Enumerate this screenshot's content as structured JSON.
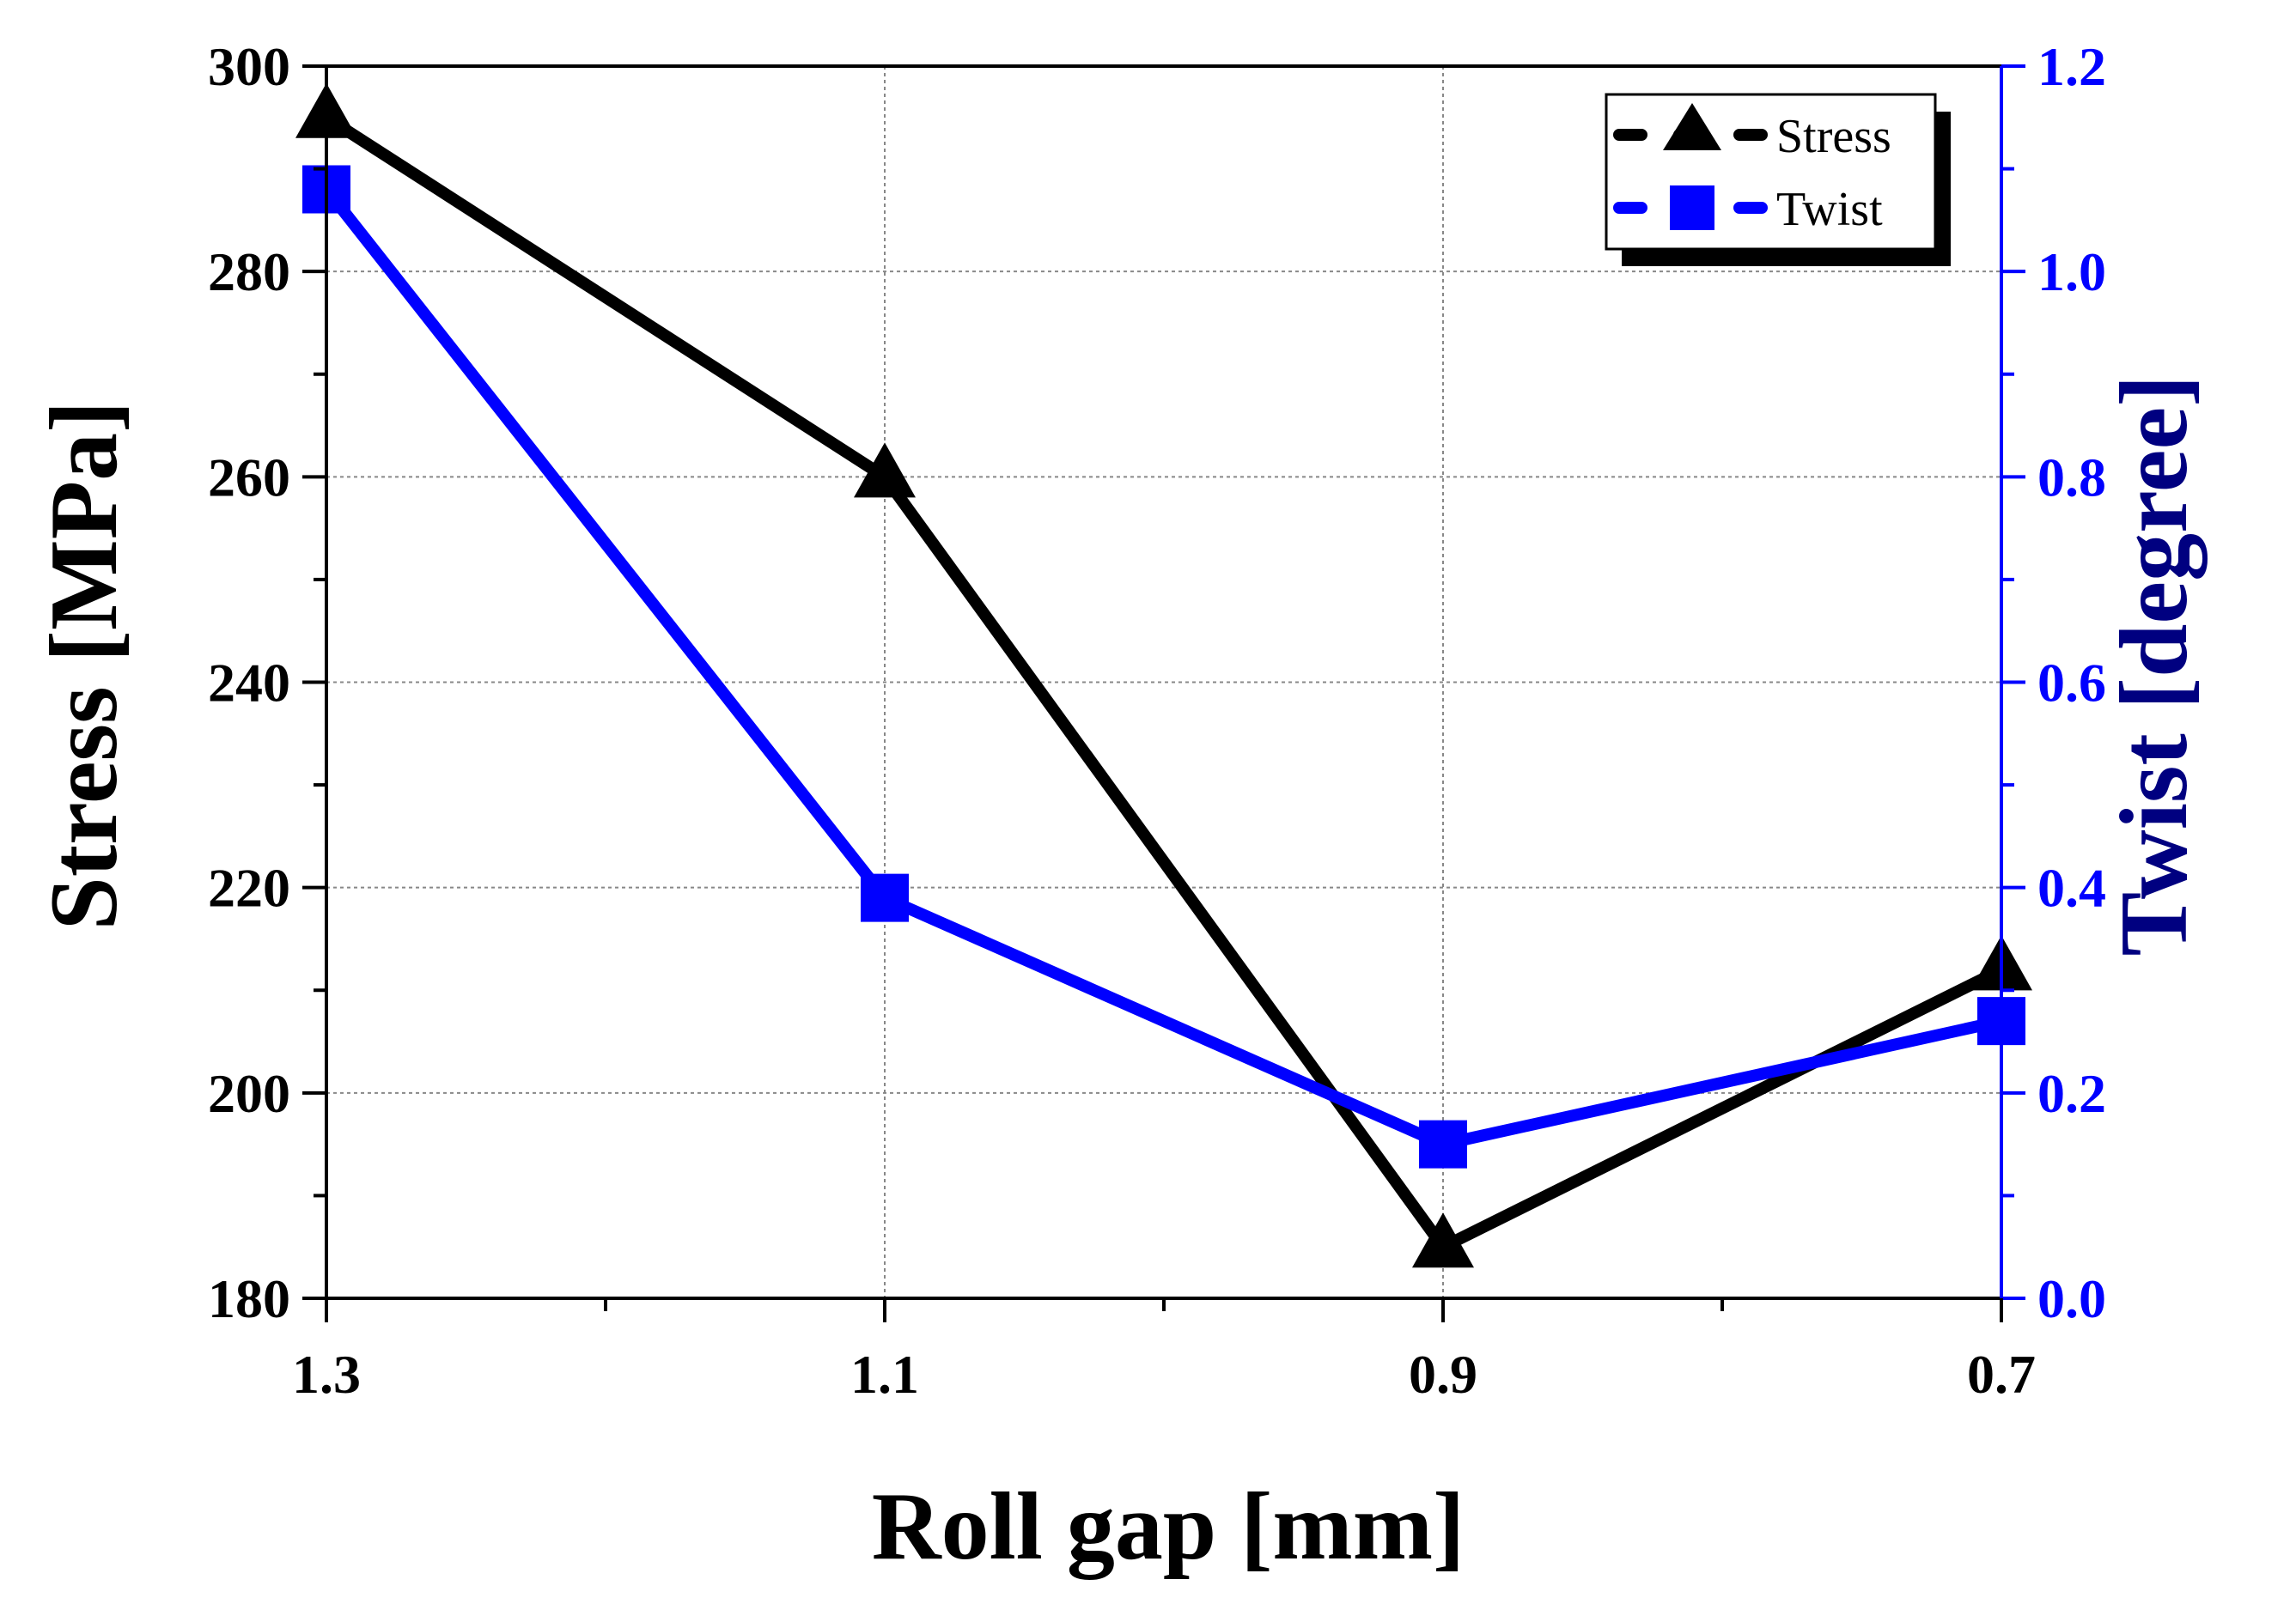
{
  "chart_data": {
    "type": "line",
    "title": "",
    "xlabel": "Roll gap [mm]",
    "ylabel": "Stress [MPa]",
    "y2label": "Twist [degree]",
    "x_ticks": [
      "1.3",
      "1.1",
      "0.9",
      "0.7"
    ],
    "x_values": [
      1.3,
      1.1,
      0.9,
      0.7
    ],
    "xlim": [
      1.3,
      0.7
    ],
    "ylim": [
      180,
      300
    ],
    "y_ticks": [
      "180",
      "200",
      "220",
      "240",
      "260",
      "280",
      "300"
    ],
    "y2lim": [
      0.0,
      1.2
    ],
    "y2_ticks": [
      "0.0",
      "0.2",
      "0.4",
      "0.6",
      "0.8",
      "1.0",
      "1.2"
    ],
    "grid": true,
    "legend_position": "top-right",
    "series": [
      {
        "name": "Stress",
        "axis": "left",
        "marker": "triangle",
        "color": "#000000",
        "values": [
          295,
          260,
          185,
          212
        ]
      },
      {
        "name": "Twist",
        "axis": "right",
        "marker": "square",
        "color": "#0000FF",
        "values": [
          1.08,
          0.39,
          0.15,
          0.27
        ]
      }
    ],
    "colors": {
      "axis": "#000000",
      "right_axis": "#0000FF",
      "right_axis_title": "#000080",
      "grid": "#888888"
    }
  }
}
